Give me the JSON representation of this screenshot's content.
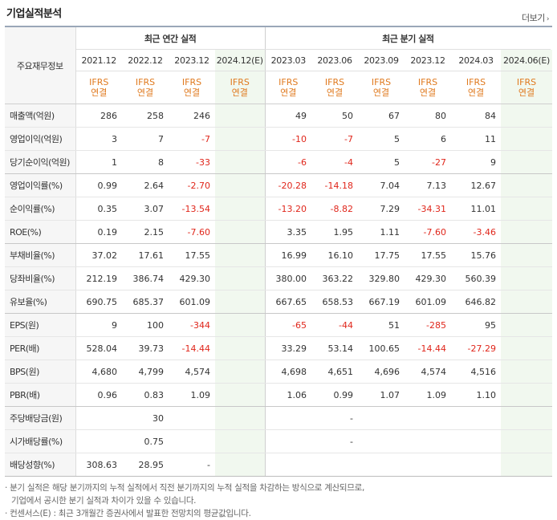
{
  "title": "기업실적분석",
  "more_label": "더보기",
  "corner_label": "주요재무정보",
  "annual_group": "최근 연간 실적",
  "quarter_group": "최근 분기 실적",
  "periods": [
    "2021.12",
    "2022.12",
    "2023.12",
    "2024.12(E)",
    "2023.03",
    "2023.06",
    "2023.09",
    "2023.12",
    "2024.03",
    "2024.06(E)"
  ],
  "ifrs_top": "IFRS",
  "ifrs_bottom": "연결",
  "rows": [
    {
      "label": "매출액(억원)",
      "values": [
        "286",
        "258",
        "246",
        "",
        "49",
        "50",
        "67",
        "80",
        "84",
        ""
      ]
    },
    {
      "label": "영업이익(억원)",
      "values": [
        "3",
        "7",
        "-7",
        "",
        "-10",
        "-7",
        "5",
        "6",
        "11",
        ""
      ]
    },
    {
      "label": "당기순이익(억원)",
      "values": [
        "1",
        "8",
        "-33",
        "",
        "-6",
        "-4",
        "5",
        "-27",
        "9",
        ""
      ]
    },
    {
      "label": "영업이익률(%)",
      "values": [
        "0.99",
        "2.64",
        "-2.70",
        "",
        "-20.28",
        "-14.18",
        "7.04",
        "7.13",
        "12.67",
        ""
      ]
    },
    {
      "label": "순이익률(%)",
      "values": [
        "0.35",
        "3.07",
        "-13.54",
        "",
        "-13.20",
        "-8.82",
        "7.29",
        "-34.31",
        "11.01",
        ""
      ]
    },
    {
      "label": "ROE(%)",
      "values": [
        "0.19",
        "2.15",
        "-7.60",
        "",
        "3.35",
        "1.95",
        "1.11",
        "-7.60",
        "-3.46",
        ""
      ]
    },
    {
      "label": "부채비율(%)",
      "values": [
        "37.02",
        "17.61",
        "17.55",
        "",
        "16.99",
        "16.10",
        "17.75",
        "17.55",
        "15.76",
        ""
      ]
    },
    {
      "label": "당좌비율(%)",
      "values": [
        "212.19",
        "386.74",
        "429.30",
        "",
        "380.00",
        "363.22",
        "329.80",
        "429.30",
        "560.39",
        ""
      ]
    },
    {
      "label": "유보율(%)",
      "values": [
        "690.75",
        "685.37",
        "601.09",
        "",
        "667.65",
        "658.53",
        "667.19",
        "601.09",
        "646.82",
        ""
      ]
    },
    {
      "label": "EPS(원)",
      "values": [
        "9",
        "100",
        "-344",
        "",
        "-65",
        "-44",
        "51",
        "-285",
        "95",
        ""
      ]
    },
    {
      "label": "PER(배)",
      "values": [
        "528.04",
        "39.73",
        "-14.44",
        "",
        "33.29",
        "53.14",
        "100.65",
        "-14.44",
        "-27.29",
        ""
      ]
    },
    {
      "label": "BPS(원)",
      "values": [
        "4,680",
        "4,799",
        "4,574",
        "",
        "4,698",
        "4,651",
        "4,696",
        "4,574",
        "4,516",
        ""
      ]
    },
    {
      "label": "PBR(배)",
      "values": [
        "0.96",
        "0.83",
        "1.09",
        "",
        "1.06",
        "0.99",
        "1.07",
        "1.09",
        "1.10",
        ""
      ]
    },
    {
      "label": "주당배당금(원)",
      "values": [
        "",
        "30",
        "",
        "",
        "",
        "-",
        "",
        "",
        "",
        ""
      ]
    },
    {
      "label": "시가배당률(%)",
      "values": [
        "",
        "0.75",
        "",
        "",
        "",
        "-",
        "",
        "",
        "",
        ""
      ]
    },
    {
      "label": "배당성향(%)",
      "values": [
        "308.63",
        "28.95",
        "-",
        "",
        "",
        "",
        "",
        "",
        "",
        ""
      ]
    }
  ],
  "notes": [
    "· 분기 실적은 해당 분기까지의 누적 실적에서 직전 분기까지의 누적 실적을 차감하는 방식으로 계산되므로,",
    "  기업에서 공시한 분기 실적과 차이가 있을 수 있습니다.",
    "· 컨센서스(E) : 최근 3개월간 증권사에서 발표한 전망치의 평균값입니다."
  ]
}
